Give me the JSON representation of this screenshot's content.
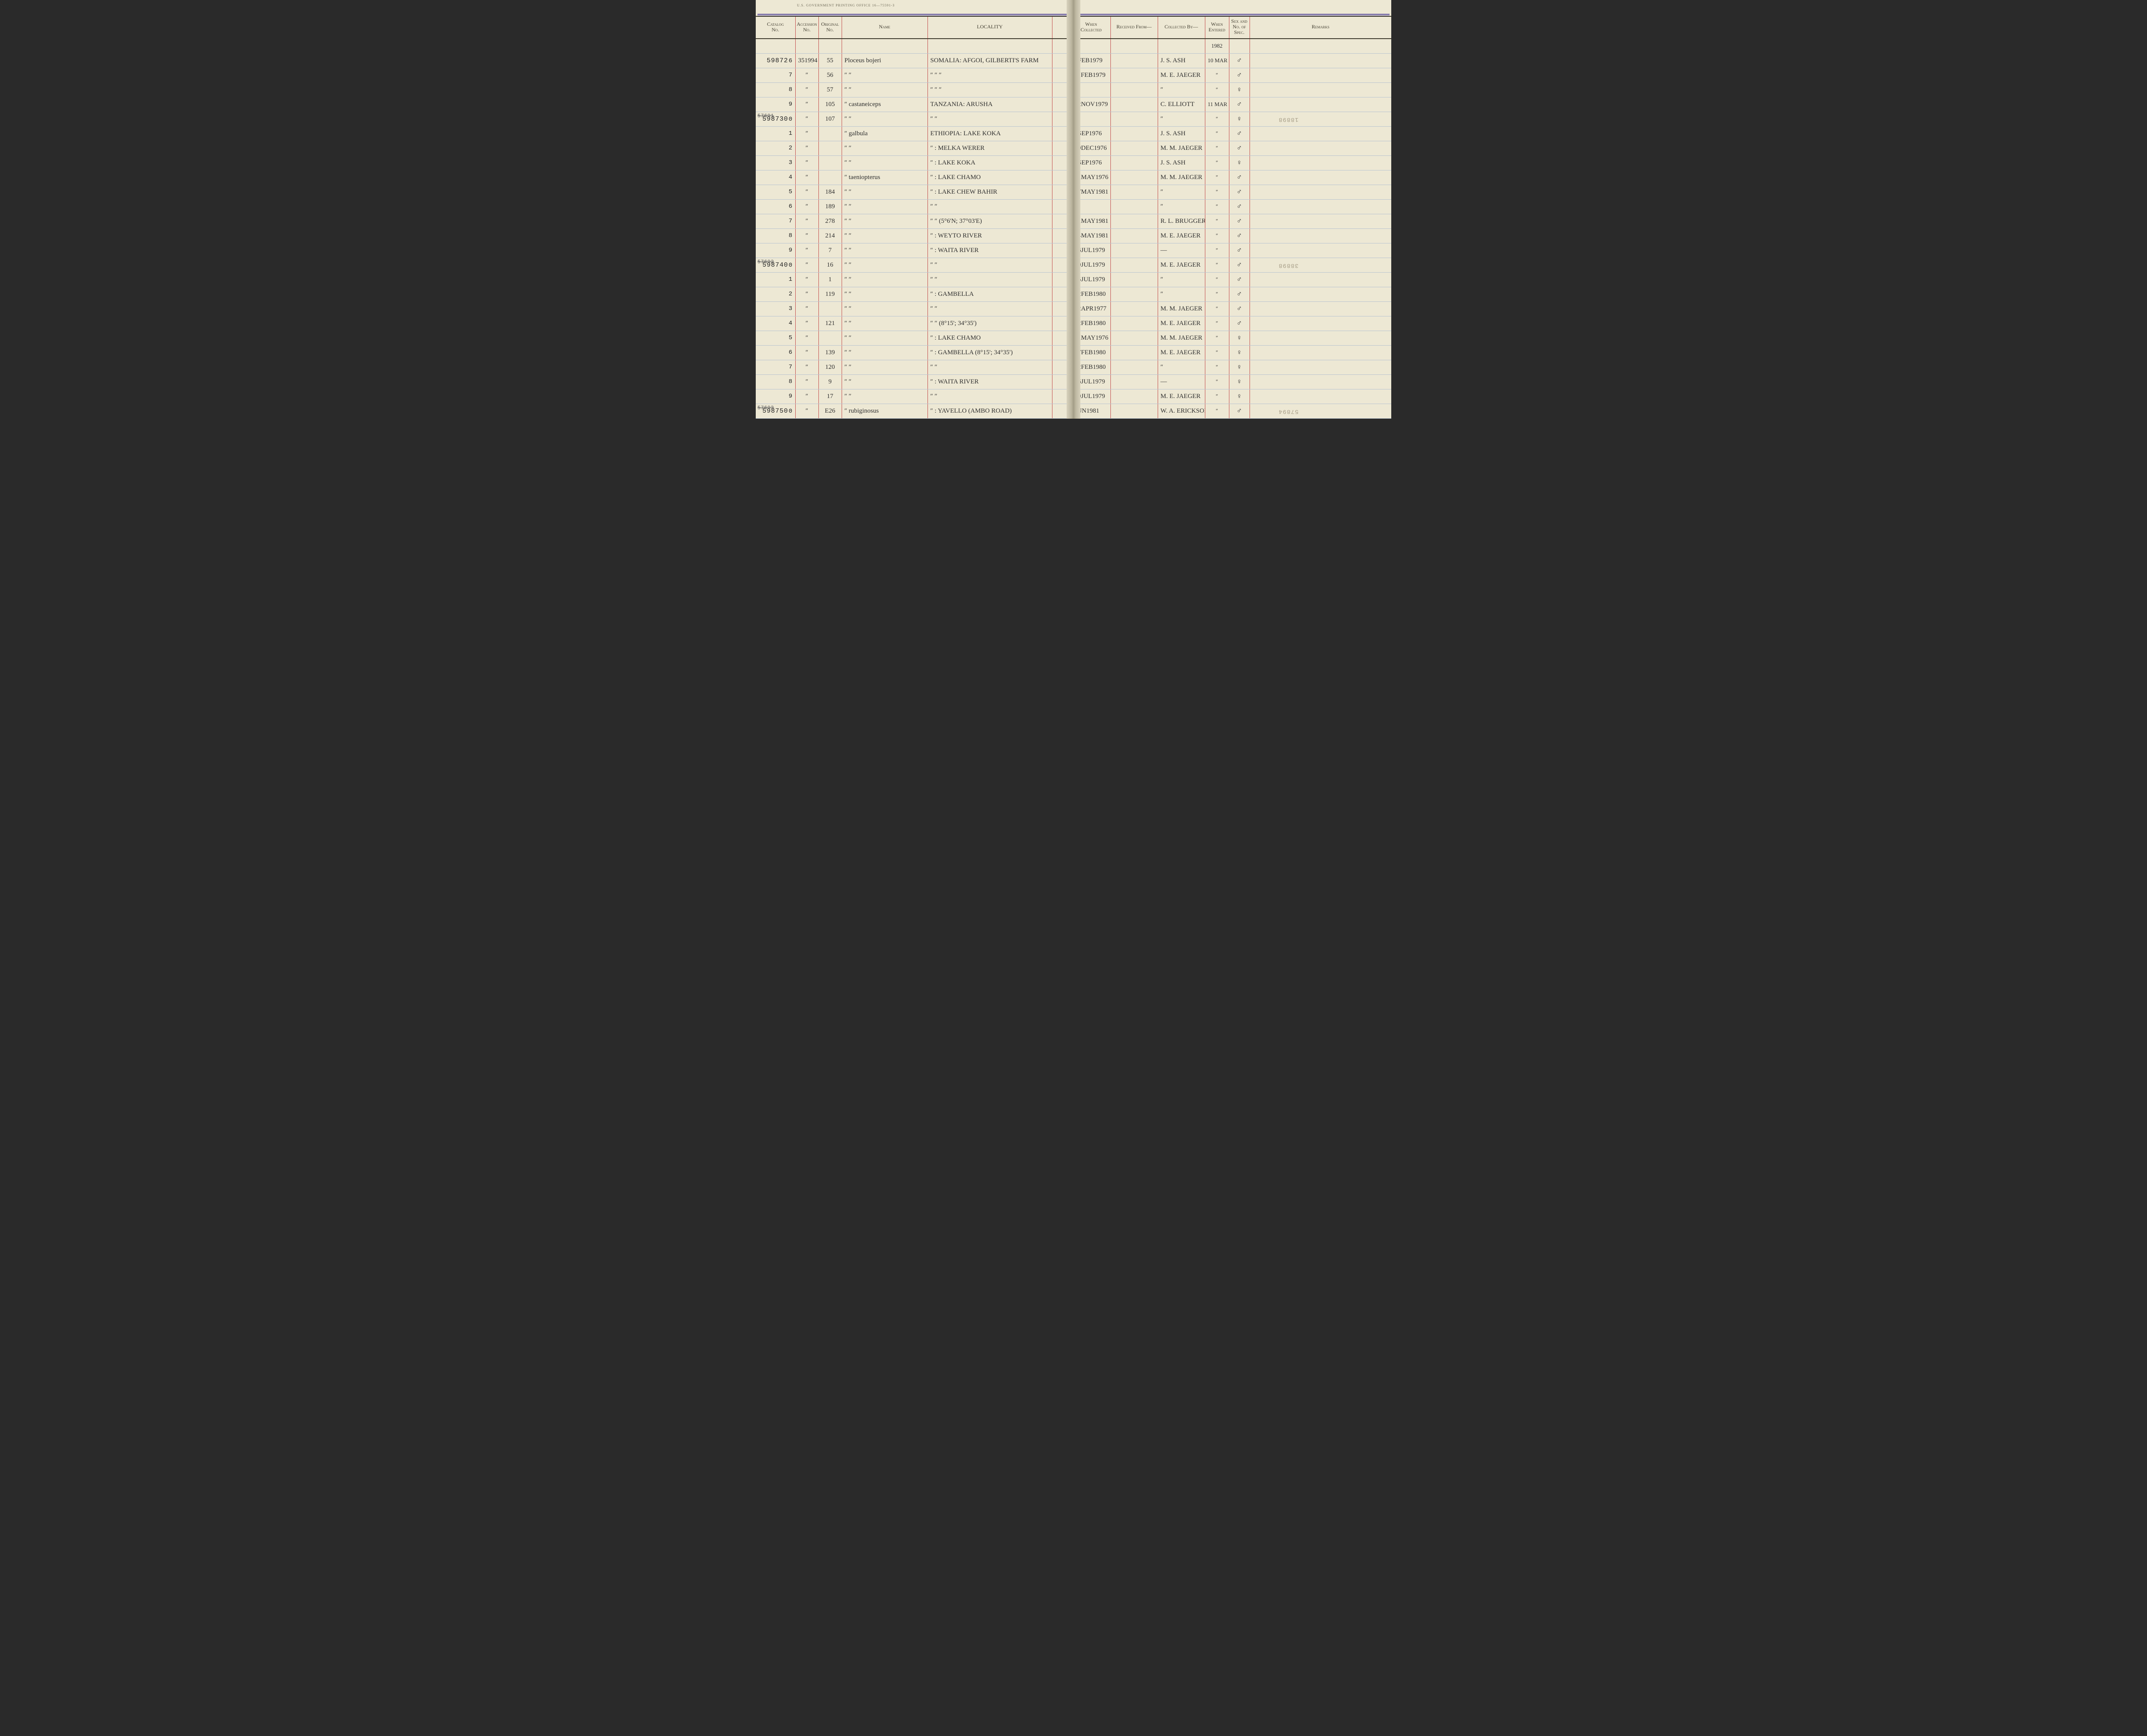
{
  "page": {
    "imprint": "U.S. GOVERNMENT PRINTING OFFICE   16—75591-3",
    "background_color": "#ede8d4",
    "rule_color_red": "#c24a4a",
    "rule_color_blue": "#b9c4d0",
    "rule_color_heavy": "#3d3a2c",
    "handwriting_color": "#2f2f2f"
  },
  "headers": {
    "catalog": "Catalog\nNo.",
    "accession": "Accession\nNo.",
    "original": "Original\nNo.",
    "name": "Name",
    "locality": "LOCALITY",
    "when_collected": "When\nCollected",
    "received_from": "Received From—",
    "collected_by": "Collected By—",
    "when_entered": "When\nEntered",
    "sex": "Sex and\nNo. of\nSpec.",
    "remarks": "Remarks"
  },
  "entered_year_header": "1982",
  "rows": [
    {
      "cat_prefix": "59872",
      "cat_suffix": "6",
      "acc": "351994",
      "orig": "55",
      "name": "Ploceus bojeri",
      "loc": "SOMALIA: AFGOI, GILBERTI'S FARM",
      "ln": "6",
      "when": "3FEB1979",
      "recv": "",
      "coll": "J. S. ASH",
      "ent": "10 MAR",
      "sex": "♂",
      "rem": ""
    },
    {
      "cat_prefix": "",
      "cat_suffix": "7",
      "acc": "″",
      "orig": "56",
      "name": "″     ″",
      "loc": "″        ″        ″",
      "ln": "7",
      "when": "11FEB1979",
      "recv": "",
      "coll": "M. E. JAEGER",
      "ent": "″",
      "sex": "♂",
      "rem": ""
    },
    {
      "cat_prefix": "",
      "cat_suffix": "8",
      "acc": "″",
      "orig": "57",
      "name": "″     ″",
      "loc": "″        ″        ″",
      "ln": "8",
      "when": "″",
      "recv": "",
      "coll": "″",
      "ent": "″",
      "sex": "♀",
      "rem": ""
    },
    {
      "cat_prefix": "",
      "cat_suffix": "9",
      "acc": "″",
      "orig": "105",
      "name": "″   castaneiceps",
      "loc": "TANZANIA: ARUSHA",
      "ln": "9",
      "when": "12NOV1979",
      "recv": "",
      "coll": "C. ELLIOTT",
      "ent": "11 MAR",
      "sex": "♂",
      "rem": ""
    },
    {
      "cat_prefix": "598730",
      "cat_suffix": "0",
      "strike": "57691",
      "acc": "″",
      "orig": "107",
      "name": "″        ″",
      "loc": "″        ″",
      "ln": "0",
      "when": "″",
      "recv": "",
      "coll": "″",
      "ent": "″",
      "sex": "♀",
      "rem": "18898"
    },
    {
      "cat_prefix": "",
      "cat_suffix": "1",
      "acc": "″",
      "orig": "",
      "name": "″   galbula",
      "loc": "ETHIOPIA: LAKE KOKA",
      "ln": "1",
      "when": "6SEP1976",
      "recv": "",
      "coll": "J. S. ASH",
      "ent": "″",
      "sex": "♂",
      "rem": ""
    },
    {
      "cat_prefix": "",
      "cat_suffix": "2",
      "acc": "″",
      "orig": "",
      "name": "″        ″",
      "loc": "″   : MELKA WERER",
      "ln": "2",
      "when": "29DEC1976",
      "recv": "",
      "coll": "M. M. JAEGER",
      "ent": "″",
      "sex": "♂",
      "rem": ""
    },
    {
      "cat_prefix": "",
      "cat_suffix": "3",
      "acc": "″",
      "orig": "",
      "name": "″        ″",
      "loc": "″   : LAKE KOKA",
      "ln": "3",
      "when": "7SEP1976",
      "recv": "",
      "coll": "J. S. ASH",
      "ent": "″",
      "sex": "♀",
      "rem": ""
    },
    {
      "cat_prefix": "",
      "cat_suffix": "4",
      "acc": "″",
      "orig": "",
      "name": "″   taeniopterus",
      "loc": "″   : LAKE CHAMO",
      "ln": "4",
      "when": "31MAY1976",
      "recv": "",
      "coll": "M. M. JAEGER",
      "ent": "″",
      "sex": "♂",
      "rem": ""
    },
    {
      "cat_prefix": "",
      "cat_suffix": "5",
      "acc": "″",
      "orig": "184",
      "name": "″        ″",
      "loc": "″   : LAKE CHEW BAHIR",
      "ln": "5",
      "when": "17MAY1981",
      "recv": "",
      "coll": "″",
      "ent": "″",
      "sex": "♂",
      "rem": ""
    },
    {
      "cat_prefix": "",
      "cat_suffix": "6",
      "acc": "″",
      "orig": "189",
      "name": "″        ″",
      "loc": "″        ″",
      "ln": "6",
      "when": "″",
      "recv": "",
      "coll": "″",
      "ent": "″",
      "sex": "♂",
      "rem": ""
    },
    {
      "cat_prefix": "",
      "cat_suffix": "7",
      "acc": "″",
      "orig": "278",
      "name": "″        ″",
      "loc": "″        ″   (5°6'N; 37°03'E)",
      "ln": "7",
      "when": "31MAY1981",
      "recv": "",
      "coll": "R. L. BRUGGERS",
      "ent": "″",
      "sex": "♂",
      "rem": ""
    },
    {
      "cat_prefix": "",
      "cat_suffix": "8",
      "acc": "″",
      "orig": "214",
      "name": "″        ″",
      "loc": "″   : WEYTO RIVER",
      "ln": "8",
      "when": "24MAY1981",
      "recv": "",
      "coll": "M. E. JAEGER",
      "ent": "″",
      "sex": "♂",
      "rem": ""
    },
    {
      "cat_prefix": "",
      "cat_suffix": "9",
      "acc": "″",
      "orig": "7",
      "name": "″        ″",
      "loc": "″   : WAITA RIVER",
      "ln": "9",
      "when": "16JUL1979",
      "recv": "",
      "coll": "—",
      "ent": "″",
      "sex": "♂",
      "rem": ""
    },
    {
      "cat_prefix": "598740",
      "cat_suffix": "0",
      "strike": "57692",
      "acc": "″",
      "orig": "16",
      "name": "″        ″",
      "loc": "″        ″",
      "ln": "0",
      "when": "19JUL1979",
      "recv": "",
      "coll": "M. E. JAEGER",
      "ent": "″",
      "sex": "♂",
      "rem": "38898"
    },
    {
      "cat_prefix": "",
      "cat_suffix": "1",
      "acc": "″",
      "orig": "1",
      "name": "″        ″",
      "loc": "″        ″",
      "ln": "1",
      "when": "15JUL1979",
      "recv": "",
      "coll": "″",
      "ent": "″",
      "sex": "♂",
      "rem": ""
    },
    {
      "cat_prefix": "",
      "cat_suffix": "2",
      "acc": "″",
      "orig": "119",
      "name": "″        ″",
      "loc": "″   : GAMBELLA",
      "ln": "2",
      "when": "12FEB1980",
      "recv": "",
      "coll": "″",
      "ent": "″",
      "sex": "♂",
      "rem": ""
    },
    {
      "cat_prefix": "",
      "cat_suffix": "3",
      "acc": "″",
      "orig": "",
      "name": "″        ″",
      "loc": "″        ″",
      "ln": "3",
      "when": "12APR1977",
      "recv": "",
      "coll": "M. M. JAEGER",
      "ent": "″",
      "sex": "♂",
      "rem": ""
    },
    {
      "cat_prefix": "",
      "cat_suffix": "4",
      "acc": "″",
      "orig": "121",
      "name": "″        ″",
      "loc": "″        ″   (8°15'; 34°35')",
      "ln": "4",
      "when": "12FEB1980",
      "recv": "",
      "coll": "M. E. JAEGER",
      "ent": "″",
      "sex": "♂",
      "rem": ""
    },
    {
      "cat_prefix": "",
      "cat_suffix": "5",
      "acc": "″",
      "orig": "",
      "name": "″        ″",
      "loc": "″   : LAKE CHAMO",
      "ln": "5",
      "when": "31MAY1976",
      "recv": "",
      "coll": "M. M. JAEGER",
      "ent": "″",
      "sex": "♀",
      "rem": ""
    },
    {
      "cat_prefix": "",
      "cat_suffix": "6",
      "acc": "″",
      "orig": "139",
      "name": "″        ″",
      "loc": "″   : GAMBELLA (8°15'; 34°35')",
      "ln": "6",
      "when": "17FEB1980",
      "recv": "",
      "coll": "M. E. JAEGER",
      "ent": "″",
      "sex": "♀",
      "rem": ""
    },
    {
      "cat_prefix": "",
      "cat_suffix": "7",
      "acc": "″",
      "orig": "120",
      "name": "″        ″",
      "loc": "″        ″",
      "ln": "7",
      "when": "12FEB1980",
      "recv": "",
      "coll": "″",
      "ent": "″",
      "sex": "♀",
      "rem": ""
    },
    {
      "cat_prefix": "",
      "cat_suffix": "8",
      "acc": "″",
      "orig": "9",
      "name": "″        ″",
      "loc": "″   : WAITA RIVER",
      "ln": "8",
      "when": "16JUL1979",
      "recv": "",
      "coll": "—",
      "ent": "″",
      "sex": "♀",
      "rem": ""
    },
    {
      "cat_prefix": "",
      "cat_suffix": "9",
      "acc": "″",
      "orig": "17",
      "name": "″        ″",
      "loc": "″        ″",
      "ln": "9",
      "when": "19JUL1979",
      "recv": "",
      "coll": "M. E. JAEGER",
      "ent": "″",
      "sex": "♀",
      "rem": ""
    },
    {
      "cat_prefix": "598750",
      "cat_suffix": "0",
      "strike": "57693",
      "acc": "″",
      "orig": "E26",
      "name": "″   rubiginosus",
      "loc": "″   : YAVELLO (AMBO ROAD)",
      "ln": "0",
      "when": "JUN1981",
      "recv": "",
      "coll": "W. A. ERICKSON",
      "ent": "″",
      "sex": "♂",
      "rem": "57894"
    }
  ]
}
